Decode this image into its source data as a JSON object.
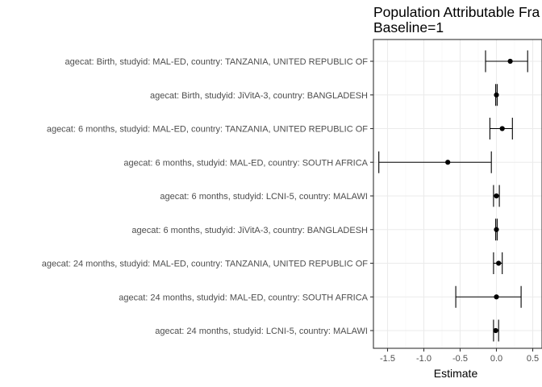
{
  "chart_data": {
    "type": "forest",
    "title_lines": [
      "Population Attributable Fra",
      "Baseline=1"
    ],
    "xlabel": "Estimate",
    "ylabel": "",
    "xlim": [
      -1.68,
      0.5
    ],
    "xticks": [
      -1.5,
      -1.0,
      -0.5,
      0.0,
      0.5
    ],
    "xtick_labels": [
      "-1.5",
      "-1.0",
      "-0.5",
      "0.0",
      "0.5"
    ],
    "grid": true,
    "categories": [
      "agecat: Birth, studyid: MAL-ED, country: TANZANIA, UNITED REPUBLIC OF",
      "agecat: Birth, studyid: JiVitA-3, country: BANGLADESH",
      "agecat: 6 months, studyid: MAL-ED, country: TANZANIA, UNITED REPUBLIC OF",
      "agecat: 6 months, studyid: MAL-ED, country: SOUTH AFRICA",
      "agecat: 6 months, studyid: LCNI-5, country: MALAWI",
      "agecat: 6 months, studyid: JiVitA-3, country: BANGLADESH",
      "agecat: 24 months, studyid: MAL-ED, country: TANZANIA, UNITED REPUBLIC OF",
      "agecat: 24 months, studyid: MAL-ED, country: SOUTH AFRICA",
      "agecat: 24 months, studyid: LCNI-5, country: MALAWI"
    ],
    "estimates": [
      0.19,
      0.0,
      0.08,
      -0.67,
      0.0,
      0.0,
      0.03,
      0.0,
      -0.01
    ],
    "lower": [
      -0.15,
      -0.01,
      -0.09,
      -1.62,
      -0.04,
      -0.01,
      -0.04,
      -0.56,
      -0.04
    ],
    "upper": [
      0.43,
      0.01,
      0.22,
      -0.07,
      0.04,
      0.01,
      0.08,
      0.34,
      0.03
    ]
  }
}
